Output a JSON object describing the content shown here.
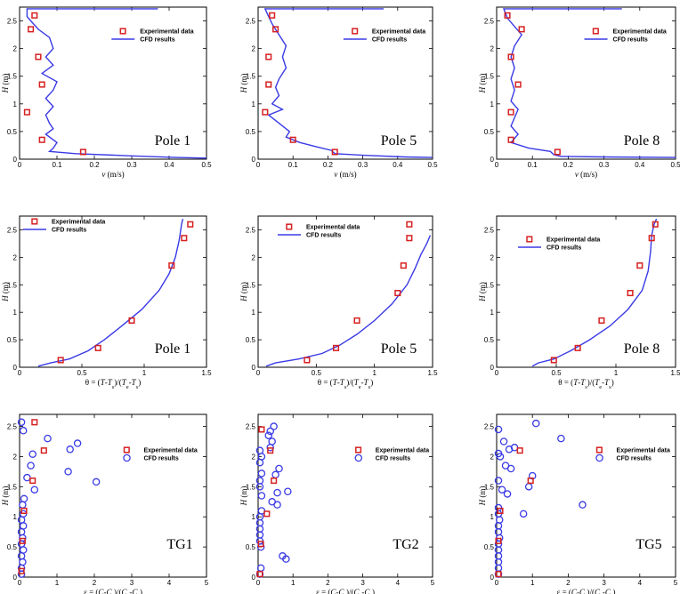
{
  "legend": {
    "exp": "Experimental data",
    "cfd": "CFD results"
  },
  "colors": {
    "exp": "#d62020",
    "cfd": "#3a3ae6",
    "axis": "#000000"
  },
  "chart_data": [
    {
      "type": "line",
      "row": 0,
      "col": 0,
      "label": "Pole 1",
      "xlabel_text": "v (m/s)",
      "ylabel_text": "H (m)",
      "xlim": [
        0,
        0.5
      ],
      "ylim": [
        0,
        2.75
      ],
      "xticks": [
        "0",
        "0.1",
        "0.2",
        "0.3",
        "0.4",
        "0.5"
      ],
      "xtick_vals": [
        0,
        0.1,
        0.2,
        0.3,
        0.4,
        0.5
      ],
      "yticks": [
        "0",
        "0.5",
        "1",
        "1.5",
        "2",
        "2.5"
      ],
      "ytick_vals": [
        0,
        0.5,
        1,
        1.5,
        2,
        2.5
      ],
      "legend_pos": "top-right",
      "marker": "square",
      "exp": [
        [
          0.04,
          2.6
        ],
        [
          0.03,
          2.35
        ],
        [
          0.05,
          1.85
        ],
        [
          0.06,
          1.35
        ],
        [
          0.02,
          0.85
        ],
        [
          0.06,
          0.35
        ],
        [
          0.17,
          0.13
        ]
      ],
      "cfd": [
        [
          0.37,
          2.72
        ],
        [
          0.02,
          2.72
        ],
        [
          0.02,
          2.58
        ],
        [
          0.03,
          2.5
        ],
        [
          0.05,
          2.35
        ],
        [
          0.08,
          2.2
        ],
        [
          0.09,
          2.0
        ],
        [
          0.07,
          1.85
        ],
        [
          0.09,
          1.7
        ],
        [
          0.06,
          1.55
        ],
        [
          0.1,
          1.4
        ],
        [
          0.09,
          1.25
        ],
        [
          0.07,
          1.1
        ],
        [
          0.09,
          0.95
        ],
        [
          0.07,
          0.8
        ],
        [
          0.08,
          0.65
        ],
        [
          0.09,
          0.55
        ],
        [
          0.07,
          0.45
        ],
        [
          0.1,
          0.3
        ],
        [
          0.09,
          0.2
        ],
        [
          0.08,
          0.14
        ],
        [
          0.15,
          0.1
        ],
        [
          0.3,
          0.06
        ],
        [
          0.42,
          0.03
        ],
        [
          0.5,
          0.02
        ]
      ]
    },
    {
      "type": "line",
      "row": 0,
      "col": 1,
      "label": "Pole 5",
      "xlabel_text": "v (m/s)",
      "ylabel_text": "H (m)",
      "xlim": [
        0,
        0.5
      ],
      "ylim": [
        0,
        2.75
      ],
      "xticks": [
        "0",
        "0.1",
        "0.2",
        "0.3",
        "0.4",
        "0.5"
      ],
      "xtick_vals": [
        0,
        0.1,
        0.2,
        0.3,
        0.4,
        0.5
      ],
      "yticks": [
        "0",
        "0.5",
        "1",
        "1.5",
        "2",
        "2.5"
      ],
      "ytick_vals": [
        0,
        0.5,
        1,
        1.5,
        2,
        2.5
      ],
      "legend_pos": "top-right",
      "marker": "square",
      "exp": [
        [
          0.04,
          2.6
        ],
        [
          0.05,
          2.35
        ],
        [
          0.03,
          1.85
        ],
        [
          0.03,
          1.35
        ],
        [
          0.02,
          0.85
        ],
        [
          0.1,
          0.35
        ],
        [
          0.22,
          0.13
        ]
      ],
      "cfd": [
        [
          0.36,
          2.72
        ],
        [
          0.02,
          2.72
        ],
        [
          0.03,
          2.58
        ],
        [
          0.04,
          2.45
        ],
        [
          0.06,
          2.25
        ],
        [
          0.08,
          2.05
        ],
        [
          0.07,
          1.85
        ],
        [
          0.08,
          1.65
        ],
        [
          0.06,
          1.45
        ],
        [
          0.05,
          1.3
        ],
        [
          0.06,
          1.15
        ],
        [
          0.04,
          1.0
        ],
        [
          0.07,
          0.9
        ],
        [
          0.03,
          0.8
        ],
        [
          0.06,
          0.65
        ],
        [
          0.09,
          0.5
        ],
        [
          0.08,
          0.4
        ],
        [
          0.12,
          0.3
        ],
        [
          0.17,
          0.22
        ],
        [
          0.21,
          0.16
        ],
        [
          0.22,
          0.1
        ],
        [
          0.3,
          0.07
        ],
        [
          0.42,
          0.04
        ],
        [
          0.5,
          0.03
        ]
      ]
    },
    {
      "type": "line",
      "row": 0,
      "col": 2,
      "label": "Pole 8",
      "xlabel_text": "v (m/s)",
      "ylabel_text": "H (m)",
      "xlim": [
        0,
        0.5
      ],
      "ylim": [
        0,
        2.75
      ],
      "xticks": [
        "0",
        "0.1",
        "0.2",
        "0.3",
        "0.4",
        "0.5"
      ],
      "xtick_vals": [
        0,
        0.1,
        0.2,
        0.3,
        0.4,
        0.5
      ],
      "yticks": [
        "0",
        "0.5",
        "1",
        "1.5",
        "2",
        "2.5"
      ],
      "ytick_vals": [
        0,
        0.5,
        1,
        1.5,
        2,
        2.5
      ],
      "legend_pos": "top-right",
      "marker": "square",
      "exp": [
        [
          0.03,
          2.6
        ],
        [
          0.07,
          2.35
        ],
        [
          0.04,
          1.85
        ],
        [
          0.06,
          1.35
        ],
        [
          0.04,
          0.85
        ],
        [
          0.04,
          0.35
        ],
        [
          0.17,
          0.13
        ]
      ],
      "cfd": [
        [
          0.35,
          2.72
        ],
        [
          0.02,
          2.72
        ],
        [
          0.03,
          2.55
        ],
        [
          0.05,
          2.4
        ],
        [
          0.07,
          2.25
        ],
        [
          0.05,
          2.05
        ],
        [
          0.04,
          1.85
        ],
        [
          0.05,
          1.65
        ],
        [
          0.04,
          1.45
        ],
        [
          0.05,
          1.25
        ],
        [
          0.04,
          1.05
        ],
        [
          0.06,
          0.9
        ],
        [
          0.05,
          0.75
        ],
        [
          0.04,
          0.6
        ],
        [
          0.06,
          0.45
        ],
        [
          0.04,
          0.3
        ],
        [
          0.09,
          0.2
        ],
        [
          0.15,
          0.14
        ],
        [
          0.16,
          0.08
        ],
        [
          0.18,
          0.05
        ],
        [
          0.3,
          0.04
        ],
        [
          0.5,
          0.03
        ]
      ]
    },
    {
      "type": "line",
      "row": 1,
      "col": 0,
      "label": "Pole 1",
      "xlabel_text": "θ = (T-Ts)/(Te-Ts)",
      "ylabel_text": "H (m)",
      "xlim": [
        0,
        1.5
      ],
      "ylim": [
        0,
        2.75
      ],
      "xticks": [
        "0",
        "0.5",
        "1",
        "1.5"
      ],
      "xtick_vals": [
        0,
        0.5,
        1,
        1.5
      ],
      "yticks": [
        "0",
        "0.5",
        "1",
        "1.5",
        "2",
        "2.5"
      ],
      "ytick_vals": [
        0,
        0.5,
        1,
        1.5,
        2,
        2.5
      ],
      "legend_pos": "top-left",
      "marker": "square",
      "exp": [
        [
          0.33,
          0.13
        ],
        [
          0.63,
          0.35
        ],
        [
          0.9,
          0.85
        ],
        [
          1.22,
          1.85
        ],
        [
          1.32,
          2.35
        ],
        [
          1.37,
          2.6
        ]
      ],
      "cfd": [
        [
          0.15,
          0.02
        ],
        [
          0.25,
          0.08
        ],
        [
          0.4,
          0.15
        ],
        [
          0.55,
          0.3
        ],
        [
          0.68,
          0.5
        ],
        [
          0.82,
          0.75
        ],
        [
          0.98,
          1.05
        ],
        [
          1.12,
          1.4
        ],
        [
          1.2,
          1.7
        ],
        [
          1.25,
          2.0
        ],
        [
          1.28,
          2.3
        ],
        [
          1.3,
          2.6
        ],
        [
          1.31,
          2.7
        ]
      ]
    },
    {
      "type": "line",
      "row": 1,
      "col": 1,
      "label": "Pole 5",
      "xlabel_text": "θ = (T-Ts)/(Te-Ts)",
      "ylabel_text": "H (m)",
      "xlim": [
        0,
        1.5
      ],
      "ylim": [
        0,
        2.75
      ],
      "xticks": [
        "0",
        "0.5",
        "1",
        "1.5"
      ],
      "xtick_vals": [
        0,
        0.5,
        1,
        1.5
      ],
      "yticks": [
        "0",
        "0.5",
        "1",
        "1.5",
        "2",
        "2.5"
      ],
      "ytick_vals": [
        0,
        0.5,
        1,
        1.5,
        2,
        2.5
      ],
      "legend_pos": "top-left",
      "marker": "square",
      "exp": [
        [
          0.42,
          0.13
        ],
        [
          0.67,
          0.35
        ],
        [
          0.85,
          0.85
        ],
        [
          1.2,
          1.35
        ],
        [
          1.25,
          1.85
        ],
        [
          1.3,
          2.35
        ],
        [
          1.3,
          2.6
        ]
      ],
      "cfd": [
        [
          0.07,
          0.02
        ],
        [
          0.15,
          0.08
        ],
        [
          0.35,
          0.15
        ],
        [
          0.55,
          0.25
        ],
        [
          0.7,
          0.4
        ],
        [
          0.85,
          0.6
        ],
        [
          1.0,
          0.85
        ],
        [
          1.15,
          1.15
        ],
        [
          1.28,
          1.5
        ],
        [
          1.35,
          1.8
        ],
        [
          1.4,
          2.05
        ],
        [
          1.45,
          2.25
        ],
        [
          1.48,
          2.4
        ]
      ]
    },
    {
      "type": "line",
      "row": 1,
      "col": 2,
      "label": "Pole 8",
      "xlabel_text": "θ = (T-Ts)/(Te-Ts)",
      "ylabel_text": "H (m)",
      "xlim": [
        0,
        1.5
      ],
      "ylim": [
        0,
        2.75
      ],
      "xticks": [
        "0",
        "0.5",
        "1",
        "1.5"
      ],
      "xtick_vals": [
        0,
        0.5,
        1,
        1.5
      ],
      "yticks": [
        "0",
        "0.5",
        "1",
        "1.5",
        "2",
        "2.5"
      ],
      "ytick_vals": [
        0,
        0.5,
        1,
        1.5,
        2,
        2.5
      ],
      "legend_pos": "top-right",
      "marker": "square",
      "exp": [
        [
          0.48,
          0.13
        ],
        [
          0.68,
          0.35
        ],
        [
          0.88,
          0.85
        ],
        [
          1.12,
          1.35
        ],
        [
          1.2,
          1.85
        ],
        [
          1.3,
          2.35
        ],
        [
          1.33,
          2.6
        ]
      ],
      "cfd": [
        [
          0.3,
          0.02
        ],
        [
          0.35,
          0.08
        ],
        [
          0.48,
          0.15
        ],
        [
          0.62,
          0.3
        ],
        [
          0.78,
          0.5
        ],
        [
          0.95,
          0.75
        ],
        [
          1.1,
          1.05
        ],
        [
          1.22,
          1.4
        ],
        [
          1.27,
          1.75
        ],
        [
          1.29,
          2.1
        ],
        [
          1.3,
          2.4
        ],
        [
          1.32,
          2.6
        ],
        [
          1.34,
          2.7
        ]
      ]
    },
    {
      "type": "scatter",
      "row": 2,
      "col": 0,
      "label": "TG1",
      "xlabel_text": "ε = (C-Cs)/(Ce-Cs)",
      "ylabel_text": "H (m)",
      "xlim": [
        0,
        5
      ],
      "ylim": [
        0,
        2.7
      ],
      "xticks": [
        "0",
        "1",
        "2",
        "3",
        "4",
        "5"
      ],
      "xtick_vals": [
        0,
        1,
        2,
        3,
        4,
        5
      ],
      "yticks": [
        "0",
        "0.5",
        "1",
        "1.5",
        "2",
        "2.5"
      ],
      "ytick_vals": [
        0,
        0.5,
        1,
        1.5,
        2,
        2.5
      ],
      "legend_pos": "right",
      "marker": "square",
      "exp": [
        [
          0.4,
          2.57
        ],
        [
          0.65,
          2.1
        ],
        [
          0.35,
          1.6
        ],
        [
          0.12,
          1.1
        ],
        [
          0.08,
          0.6
        ],
        [
          0.05,
          0.1
        ]
      ],
      "cfd": [
        [
          0.05,
          2.57
        ],
        [
          0.1,
          2.43
        ],
        [
          0.75,
          2.3
        ],
        [
          1.55,
          2.22
        ],
        [
          1.35,
          2.12
        ],
        [
          0.35,
          2.04
        ],
        [
          0.3,
          1.85
        ],
        [
          1.3,
          1.75
        ],
        [
          0.2,
          1.65
        ],
        [
          2.05,
          1.58
        ],
        [
          0.4,
          1.45
        ],
        [
          0.12,
          1.3
        ],
        [
          0.08,
          1.2
        ],
        [
          0.1,
          1.05
        ],
        [
          0.05,
          0.95
        ],
        [
          0.1,
          0.85
        ],
        [
          0.05,
          0.75
        ],
        [
          0.08,
          0.65
        ],
        [
          0.05,
          0.55
        ],
        [
          0.1,
          0.45
        ],
        [
          0.05,
          0.35
        ],
        [
          0.08,
          0.25
        ],
        [
          0.05,
          0.15
        ],
        [
          0.05,
          0.05
        ]
      ]
    },
    {
      "type": "scatter",
      "row": 2,
      "col": 1,
      "label": "TG2",
      "xlabel_text": "ε = (C-Cs)/(Ce-Cs)",
      "ylabel_text": "H (m)",
      "xlim": [
        0,
        5
      ],
      "ylim": [
        0,
        2.7
      ],
      "xticks": [
        "0",
        "1",
        "2",
        "3",
        "4",
        "5"
      ],
      "xtick_vals": [
        0,
        1,
        2,
        3,
        4,
        5
      ],
      "yticks": [
        "0",
        "0.5",
        "1",
        "1.5",
        "2",
        "2.5"
      ],
      "ytick_vals": [
        0,
        0.5,
        1,
        1.5,
        2,
        2.5
      ],
      "legend_pos": "right",
      "marker": "square",
      "exp": [
        [
          0.1,
          2.45
        ],
        [
          0.35,
          2.1
        ],
        [
          0.45,
          1.6
        ],
        [
          0.25,
          1.05
        ],
        [
          0.08,
          0.55
        ],
        [
          0.05,
          0.05
        ]
      ],
      "cfd": [
        [
          0.45,
          2.5
        ],
        [
          0.35,
          2.42
        ],
        [
          0.3,
          2.35
        ],
        [
          0.4,
          2.25
        ],
        [
          0.35,
          2.15
        ],
        [
          0.05,
          2.1
        ],
        [
          0.1,
          2.0
        ],
        [
          0.05,
          1.9
        ],
        [
          0.6,
          1.8
        ],
        [
          0.1,
          1.72
        ],
        [
          0.5,
          1.7
        ],
        [
          0.05,
          1.6
        ],
        [
          0.05,
          1.5
        ],
        [
          0.85,
          1.42
        ],
        [
          0.55,
          1.4
        ],
        [
          0.1,
          1.35
        ],
        [
          0.4,
          1.25
        ],
        [
          0.55,
          1.2
        ],
        [
          0.1,
          1.1
        ],
        [
          0.05,
          1.0
        ],
        [
          0.05,
          0.9
        ],
        [
          0.05,
          0.8
        ],
        [
          0.05,
          0.7
        ],
        [
          0.05,
          0.6
        ],
        [
          0.08,
          0.5
        ],
        [
          0.7,
          0.35
        ],
        [
          0.8,
          0.3
        ],
        [
          0.08,
          0.15
        ],
        [
          0.05,
          0.05
        ]
      ]
    },
    {
      "type": "scatter",
      "row": 2,
      "col": 2,
      "label": "TG5",
      "xlabel_text": "ε = (C-Cs)/(Ce-Cs)",
      "ylabel_text": "H (m)",
      "xlim": [
        0,
        5
      ],
      "ylim": [
        0,
        2.7
      ],
      "xticks": [
        "0",
        "1",
        "2",
        "3",
        "4",
        "5"
      ],
      "xtick_vals": [
        0,
        1,
        2,
        3,
        4,
        5
      ],
      "yticks": [
        "0",
        "0.5",
        "1",
        "1.5",
        "2",
        "2.5"
      ],
      "ytick_vals": [
        0,
        0.5,
        1,
        1.5,
        2,
        2.5
      ],
      "legend_pos": "right",
      "marker": "square",
      "exp": [
        [
          0.65,
          2.1
        ],
        [
          0.95,
          1.6
        ],
        [
          0.1,
          1.1
        ],
        [
          0.05,
          0.6
        ],
        [
          0.05,
          0.05
        ]
      ],
      "cfd": [
        [
          1.1,
          2.55
        ],
        [
          0.05,
          2.45
        ],
        [
          1.8,
          2.3
        ],
        [
          0.2,
          2.25
        ],
        [
          0.5,
          2.15
        ],
        [
          0.35,
          2.12
        ],
        [
          0.05,
          2.05
        ],
        [
          0.1,
          2.0
        ],
        [
          0.25,
          1.85
        ],
        [
          0.4,
          1.8
        ],
        [
          1.0,
          1.68
        ],
        [
          0.05,
          1.6
        ],
        [
          0.9,
          1.5
        ],
        [
          0.15,
          1.45
        ],
        [
          0.3,
          1.38
        ],
        [
          2.4,
          1.2
        ],
        [
          0.05,
          1.15
        ],
        [
          0.05,
          1.05
        ],
        [
          0.75,
          1.05
        ],
        [
          0.08,
          0.95
        ],
        [
          0.05,
          0.85
        ],
        [
          0.05,
          0.75
        ],
        [
          0.08,
          0.65
        ],
        [
          0.05,
          0.55
        ],
        [
          0.05,
          0.45
        ],
        [
          0.05,
          0.35
        ],
        [
          0.05,
          0.25
        ],
        [
          0.05,
          0.15
        ],
        [
          0.05,
          0.05
        ]
      ]
    }
  ]
}
